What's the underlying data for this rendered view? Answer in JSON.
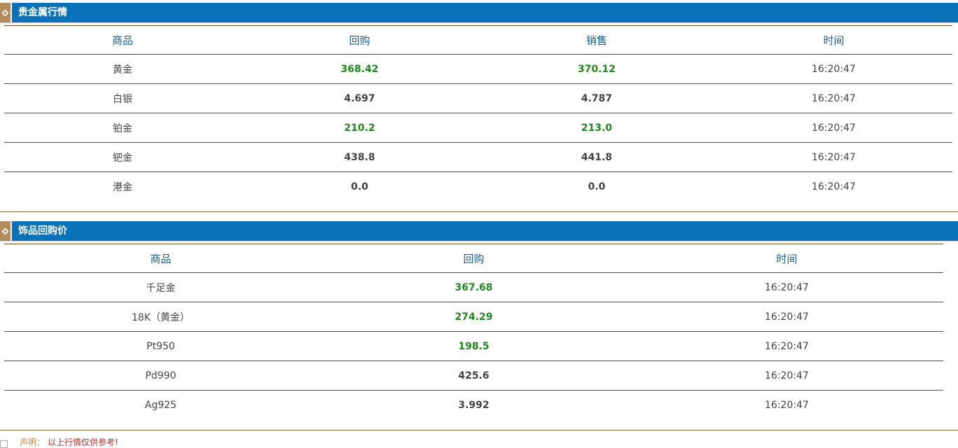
{
  "colors": {
    "header_bg": "#0972b8",
    "up": "#1c8a1c",
    "neutral": "#444444",
    "rule": "#6b4a21"
  },
  "precious": {
    "title": "贵金属行情",
    "headers": [
      "商品",
      "回购",
      "销售",
      "时间"
    ],
    "rows": [
      {
        "name": "黄金",
        "buy": "368.42",
        "sell": "370.12",
        "time": "16:20:47",
        "trend": "up"
      },
      {
        "name": "白银",
        "buy": "4.697",
        "sell": "4.787",
        "time": "16:20:47",
        "trend": "flat"
      },
      {
        "name": "铂金",
        "buy": "210.2",
        "sell": "213.0",
        "time": "16:20:47",
        "trend": "up"
      },
      {
        "name": "钯金",
        "buy": "438.8",
        "sell": "441.8",
        "time": "16:20:47",
        "trend": "flat"
      },
      {
        "name": "港金",
        "buy": "0.0",
        "sell": "0.0",
        "time": "16:20:47",
        "trend": "flat"
      }
    ]
  },
  "jewelry": {
    "title": "饰品回购价",
    "headers": [
      "商品",
      "回购",
      "时间"
    ],
    "rows": [
      {
        "name": "千足金",
        "buy": "367.68",
        "time": "16:20:47",
        "trend": "up"
      },
      {
        "name": "18K（黄金）",
        "buy": "274.29",
        "time": "16:20:47",
        "trend": "up"
      },
      {
        "name": "Pt950",
        "buy": "198.5",
        "time": "16:20:47",
        "trend": "up"
      },
      {
        "name": "Pd990",
        "buy": "425.6",
        "time": "16:20:47",
        "trend": "flat"
      },
      {
        "name": "Ag925",
        "buy": "3.992",
        "time": "16:20:47",
        "trend": "flat"
      }
    ]
  },
  "notice": {
    "label": "声明：",
    "text": "以上行情仅供参考!"
  },
  "icons": {
    "section": "section-diamond-icon"
  }
}
